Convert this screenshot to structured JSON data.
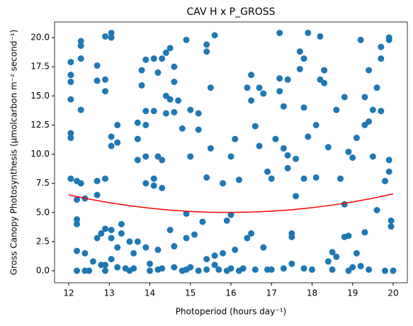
{
  "chart_data": {
    "type": "scatter",
    "title": "CAV H x P_GROSS",
    "xlabel": "Photoperiod (hours day⁻¹)",
    "ylabel": "Gross Canopy Photosynthesis (μmolcarbon m⁻² second⁻¹)",
    "xlim": [
      11.65,
      20.35
    ],
    "ylim": [
      -1.03,
      21.34
    ],
    "xticks": [
      12,
      13,
      14,
      15,
      16,
      17,
      18,
      19,
      20
    ],
    "yticks": [
      {
        "value": 0,
        "label": "0.0"
      },
      {
        "value": 2.5,
        "label": "2.5"
      },
      {
        "value": 5,
        "label": "5.0"
      },
      {
        "value": 7.5,
        "label": "7.5"
      },
      {
        "value": 10,
        "label": "10.0"
      },
      {
        "value": 12.5,
        "label": "12.5"
      },
      {
        "value": 15,
        "label": "15.0"
      },
      {
        "value": 17.5,
        "label": "17.5"
      },
      {
        "value": 20,
        "label": "20.0"
      }
    ],
    "series": [
      {
        "type": "scatter",
        "color": "#1f77b4",
        "x": [
          12.05,
          12.05,
          12.05,
          12.05,
          12.05,
          12.05,
          12.05,
          12.2,
          12.2,
          12.2,
          12.2,
          12.2,
          12.2,
          12.3,
          12.3,
          12.3,
          12.3,
          12.3,
          12.4,
          12.4,
          12.4,
          12.5,
          12.6,
          12.7,
          12.7,
          12.7,
          12.7,
          12.7,
          12.8,
          12.8,
          12.9,
          12.9,
          12.9,
          12.9,
          12.9,
          12.9,
          12.9,
          13.05,
          13.05,
          13.05,
          13.05,
          13.05,
          13.05,
          13.05,
          13.2,
          13.2,
          13.2,
          13.2,
          13.3,
          13.3,
          13.4,
          13.5,
          13.5,
          13.6,
          13.6,
          13.7,
          13.7,
          13.7,
          13.7,
          13.8,
          13.8,
          13.9,
          13.9,
          13.9,
          13.9,
          13.9,
          13.9,
          14.0,
          14.0,
          14.1,
          14.1,
          14.1,
          14.1,
          14.2,
          14.2,
          14.2,
          14.2,
          14.3,
          14.3,
          14.3,
          14.3,
          14.4,
          14.4,
          14.4,
          14.5,
          14.5,
          14.5,
          14.6,
          14.6,
          14.6,
          14.6,
          14.6,
          14.7,
          14.8,
          14.8,
          14.9,
          14.9,
          14.9,
          14.9,
          15.0,
          15.0,
          15.0,
          15.1,
          15.2,
          15.2,
          15.2,
          15.3,
          15.4,
          15.4,
          15.4,
          15.4,
          15.4,
          15.5,
          15.5,
          15.6,
          15.6,
          15.6,
          15.7,
          15.8,
          15.8,
          15.9,
          15.9,
          16.0,
          16.0,
          16.0,
          16.1,
          16.1,
          16.2,
          16.2,
          16.3,
          16.4,
          16.4,
          16.5,
          16.5,
          16.5,
          16.6,
          16.6,
          16.7,
          16.7,
          16.8,
          16.8,
          16.9,
          16.9,
          17.0,
          17.0,
          17.1,
          17.2,
          17.2,
          17.2,
          17.3,
          17.3,
          17.3,
          17.4,
          17.4,
          17.4,
          17.5,
          17.5,
          17.5,
          17.6,
          17.6,
          17.7,
          17.7,
          17.8,
          17.8,
          17.8,
          17.8,
          17.9,
          17.9,
          18.0,
          18.1,
          18.1,
          18.2,
          18.2,
          18.3,
          18.3,
          18.4,
          18.4,
          18.5,
          18.5,
          18.6,
          18.6,
          18.7,
          18.8,
          18.8,
          18.8,
          18.9,
          18.9,
          18.9,
          19.0,
          19.0,
          19.1,
          19.1,
          19.2,
          19.2,
          19.3,
          19.3,
          19.3,
          19.4,
          19.4,
          19.4,
          19.5,
          19.5,
          19.6,
          19.6,
          19.7,
          19.7,
          19.7,
          19.8,
          19.8,
          19.9,
          19.9,
          19.9,
          19.9,
          19.95,
          19.95,
          20.0
        ],
        "values": [
          17.9,
          16.8,
          16.2,
          14.7,
          11.8,
          11.4,
          7.9,
          7.7,
          6.1,
          4.4,
          4.0,
          1.7,
          0,
          19.7,
          19.3,
          18.2,
          13.8,
          7.5,
          6.2,
          1.5,
          0,
          0,
          0.8,
          17.6,
          16.3,
          7.7,
          6.5,
          2.8,
          3.2,
          0.5,
          20.1,
          16.4,
          15.4,
          7.9,
          3.6,
          0,
          0.5,
          20.4,
          20.0,
          11.5,
          10.7,
          3.5,
          2.8,
          1.0,
          12.5,
          11.0,
          2.0,
          0.3,
          4.0,
          3.2,
          0.2,
          0,
          2.5,
          1.5,
          0.2,
          12.7,
          11.3,
          9.5,
          2.5,
          17.2,
          15.9,
          18.1,
          13.7,
          12.5,
          9.8,
          7.5,
          2.0,
          0,
          0.6,
          18.2,
          13.7,
          7.9,
          7.3,
          17.0,
          9.8,
          1.8,
          0.1,
          18.2,
          9.5,
          7.1,
          0.2,
          18.7,
          15.0,
          13.5,
          19.1,
          14.7,
          3.5,
          17.5,
          16.2,
          13.6,
          0.3,
          2.1,
          14.6,
          12.2,
          0,
          19.8,
          4.9,
          2.8,
          0.1,
          13.8,
          9.8,
          0.3,
          3.1,
          13.5,
          12.1,
          0,
          4.2,
          19.4,
          18.8,
          8.0,
          1.0,
          0.1,
          15.7,
          10.5,
          20.2,
          0.5,
          1.3,
          0.1,
          7.5,
          1.5,
          4.3,
          0,
          9.8,
          4.8,
          0.2,
          11.3,
          1.8,
          7.8,
          0,
          0.2,
          15.7,
          2.8,
          16.8,
          14.6,
          3.2,
          12.4,
          0.1,
          15.7,
          10.7,
          15.2,
          2.0,
          8.5,
          0.1,
          7.9,
          0.1,
          11.3,
          20.4,
          16.5,
          15.4,
          14.1,
          10.5,
          0.2,
          16.4,
          9.9,
          8.8,
          3.2,
          0.6,
          2.9,
          6.4,
          9.6,
          18.8,
          17.3,
          18.2,
          14.0,
          7.9,
          0.2,
          20.4,
          11.5,
          0.1,
          12.5,
          8.0,
          20.1,
          16.4,
          17.2,
          16.1,
          10.6,
          0.8,
          0.1,
          1.6,
          13.8,
          1.2,
          7.9,
          14.9,
          5.7,
          2.9,
          10.2,
          3.0,
          0,
          9.7,
          0.3,
          11.4,
          1.5,
          19.8,
          0.4,
          14.9,
          12.5,
          3.3,
          17.2,
          12.8,
          0.1,
          13.8,
          9.8,
          15.7,
          5.2,
          18.2,
          19.2,
          13.7,
          7.7,
          0,
          19.8,
          20.0,
          9.5,
          8.5,
          4.3,
          3.8,
          0
        ]
      },
      {
        "type": "line",
        "color": "#ff0000",
        "x": [
          12,
          12.5,
          13,
          13.5,
          14,
          14.5,
          15,
          15.5,
          16,
          16.5,
          17,
          17.5,
          18,
          18.5,
          19,
          19.5,
          20
        ],
        "values": [
          6.51,
          6.15,
          5.84,
          5.58,
          5.37,
          5.2,
          5.09,
          5.02,
          5.0,
          5.03,
          5.11,
          5.23,
          5.41,
          5.63,
          5.9,
          6.22,
          6.59
        ]
      }
    ]
  }
}
